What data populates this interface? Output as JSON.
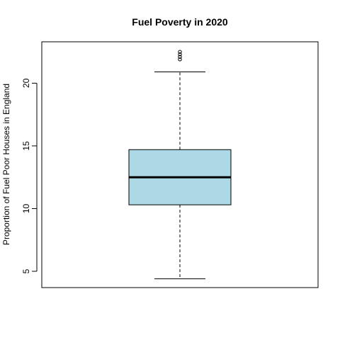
{
  "chart_data": {
    "type": "boxplot",
    "title": "Fuel Poverty in 2020",
    "xlabel": "",
    "ylabel": "Proportion of Fuel Poor Houses in England",
    "ylim": [
      3.7,
      23.3
    ],
    "yticks": [
      5,
      10,
      15,
      20
    ],
    "grid": false,
    "legend": "none",
    "box": {
      "whisker_low": 4.4,
      "q1": 10.3,
      "median": 12.5,
      "q3": 14.7,
      "whisker_high": 20.9
    },
    "outliers": [
      21.9,
      22.1,
      22.3,
      22.5
    ],
    "fill_color": "#ADD8E6"
  }
}
